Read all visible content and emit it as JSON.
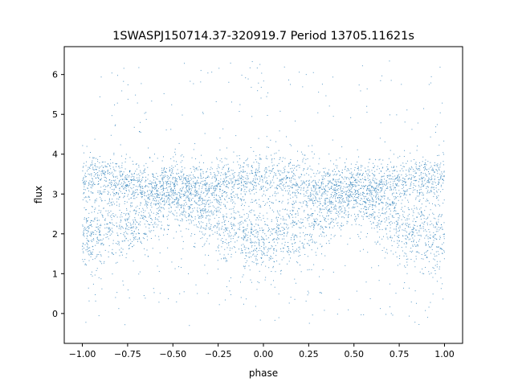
{
  "chart_data": {
    "type": "scatter",
    "title": "1SWASPJ150714.37-320919.7 Period 13705.11621s",
    "xlabel": "phase",
    "ylabel": "flux",
    "xlim": [
      -1.1,
      1.1
    ],
    "ylim": [
      -0.75,
      6.7
    ],
    "x_ticks": [
      -1.0,
      -0.75,
      -0.5,
      -0.25,
      0.0,
      0.25,
      0.5,
      0.75,
      1.0
    ],
    "x_tick_labels": [
      "−1.00",
      "−0.75",
      "−0.50",
      "−0.25",
      "0.00",
      "0.25",
      "0.50",
      "0.75",
      "1.00"
    ],
    "y_ticks": [
      0,
      1,
      2,
      3,
      4,
      5,
      6
    ],
    "y_tick_labels": [
      "0",
      "1",
      "2",
      "3",
      "4",
      "5",
      "6"
    ],
    "grid": false,
    "legend": "none",
    "series": [
      {
        "color": "#1f77b4",
        "x_range": [
          -1.0,
          1.0
        ],
        "bands": [
          {
            "phase": [
              -1.0,
              -0.75,
              -0.5,
              -0.25,
              0.0,
              0.25,
              0.5,
              0.75,
              1.0
            ],
            "flux": [
              3.4,
              3.3,
              3.1,
              3.2,
              3.45,
              3.2,
              3.1,
              3.3,
              3.4
            ],
            "spread": 0.3
          },
          {
            "phase": [
              -1.0,
              -0.75,
              -0.5,
              -0.25,
              0.0,
              0.25,
              0.5,
              0.75,
              1.0
            ],
            "flux": [
              1.9,
              2.2,
              3.0,
              2.2,
              1.8,
              2.2,
              3.0,
              2.2,
              1.9
            ],
            "spread": 0.45
          }
        ],
        "outlier_range": [
          -0.3,
          6.4
        ]
      }
    ]
  }
}
